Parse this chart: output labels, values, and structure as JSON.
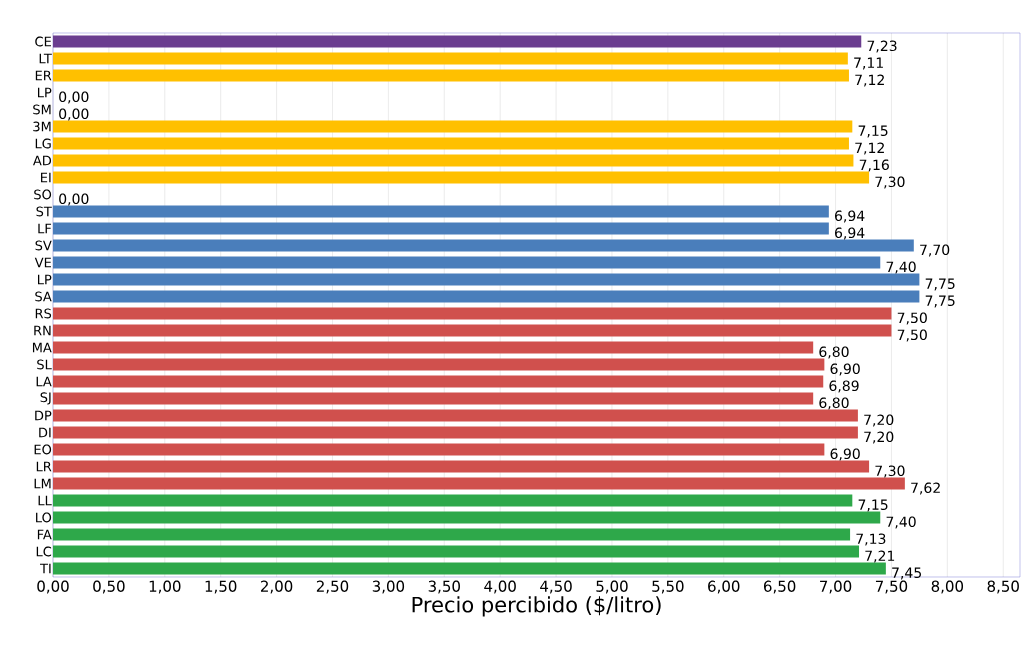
{
  "chart_data": {
    "type": "bar",
    "orientation": "horizontal",
    "xlabel": "Precio percibido ($/litro)",
    "categories": [
      "CE",
      "LT",
      "ER",
      "LP",
      "SM",
      "3M",
      "LG",
      "AD",
      "EI",
      "SO",
      "ST",
      "LF",
      "SV",
      "VE",
      "LP",
      "SA",
      "RS",
      "RN",
      "MA",
      "SL",
      "LA",
      "SJ",
      "DP",
      "DI",
      "EO",
      "LR",
      "LM",
      "LL",
      "LO",
      "FA",
      "LC",
      "TI"
    ],
    "values": [
      7.23,
      7.11,
      7.12,
      0,
      0,
      7.15,
      7.12,
      7.16,
      7.3,
      0,
      6.94,
      6.94,
      7.7,
      7.4,
      7.75,
      7.75,
      7.5,
      7.5,
      6.8,
      6.9,
      6.89,
      6.8,
      7.2,
      7.2,
      6.9,
      7.3,
      7.62,
      7.15,
      7.4,
      7.13,
      7.21,
      7.45
    ],
    "value_labels": [
      "7,23",
      "7,11",
      "7,12",
      "0,00",
      "0,00",
      "7,15",
      "7,12",
      "7,16",
      "7,30",
      "0,00",
      "6,94",
      "6,94",
      "7,70",
      "7,40",
      "7,75",
      "7,75",
      "7,50",
      "7,50",
      "6,80",
      "6,90",
      "6,89",
      "6,80",
      "7,20",
      "7,20",
      "6,90",
      "7,30",
      "7,62",
      "7,15",
      "7,40",
      "7,13",
      "7,21",
      "7,45"
    ],
    "colors": [
      "#6a3d8f",
      "#ffc000",
      "#ffc000",
      "#ffc000",
      "#ffc000",
      "#ffc000",
      "#ffc000",
      "#ffc000",
      "#ffc000",
      "#ffc000",
      "#4a7ebb",
      "#4a7ebb",
      "#4a7ebb",
      "#4a7ebb",
      "#4a7ebb",
      "#4a7ebb",
      "#d0504d",
      "#d0504d",
      "#d0504d",
      "#d0504d",
      "#d0504d",
      "#d0504d",
      "#d0504d",
      "#d0504d",
      "#d0504d",
      "#d0504d",
      "#d0504d",
      "#2ea84a",
      "#2ea84a",
      "#2ea84a",
      "#2ea84a",
      "#2ea84a"
    ],
    "xlim": [
      0,
      8.65
    ],
    "xticks": [
      {
        "value": 0,
        "label": "0,00"
      },
      {
        "value": 0.5,
        "label": "0,50"
      },
      {
        "value": 1,
        "label": "1,00"
      },
      {
        "value": 1.5,
        "label": "1,50"
      },
      {
        "value": 2,
        "label": "2,00"
      },
      {
        "value": 2.5,
        "label": "2,50"
      },
      {
        "value": 3,
        "label": "3,00"
      },
      {
        "value": 3.5,
        "label": "3,50"
      },
      {
        "value": 4,
        "label": "4,00"
      },
      {
        "value": 4.5,
        "label": "4,50"
      },
      {
        "value": 5,
        "label": "5,00"
      },
      {
        "value": 5.5,
        "label": "5,50"
      },
      {
        "value": 6,
        "label": "6,00"
      },
      {
        "value": 6.5,
        "label": "6,50"
      },
      {
        "value": 7,
        "label": "7,00"
      },
      {
        "value": 7.5,
        "label": "7,50"
      },
      {
        "value": 8,
        "label": "8,00"
      },
      {
        "value": 8.5,
        "label": "8,50"
      }
    ],
    "grid": "x"
  }
}
